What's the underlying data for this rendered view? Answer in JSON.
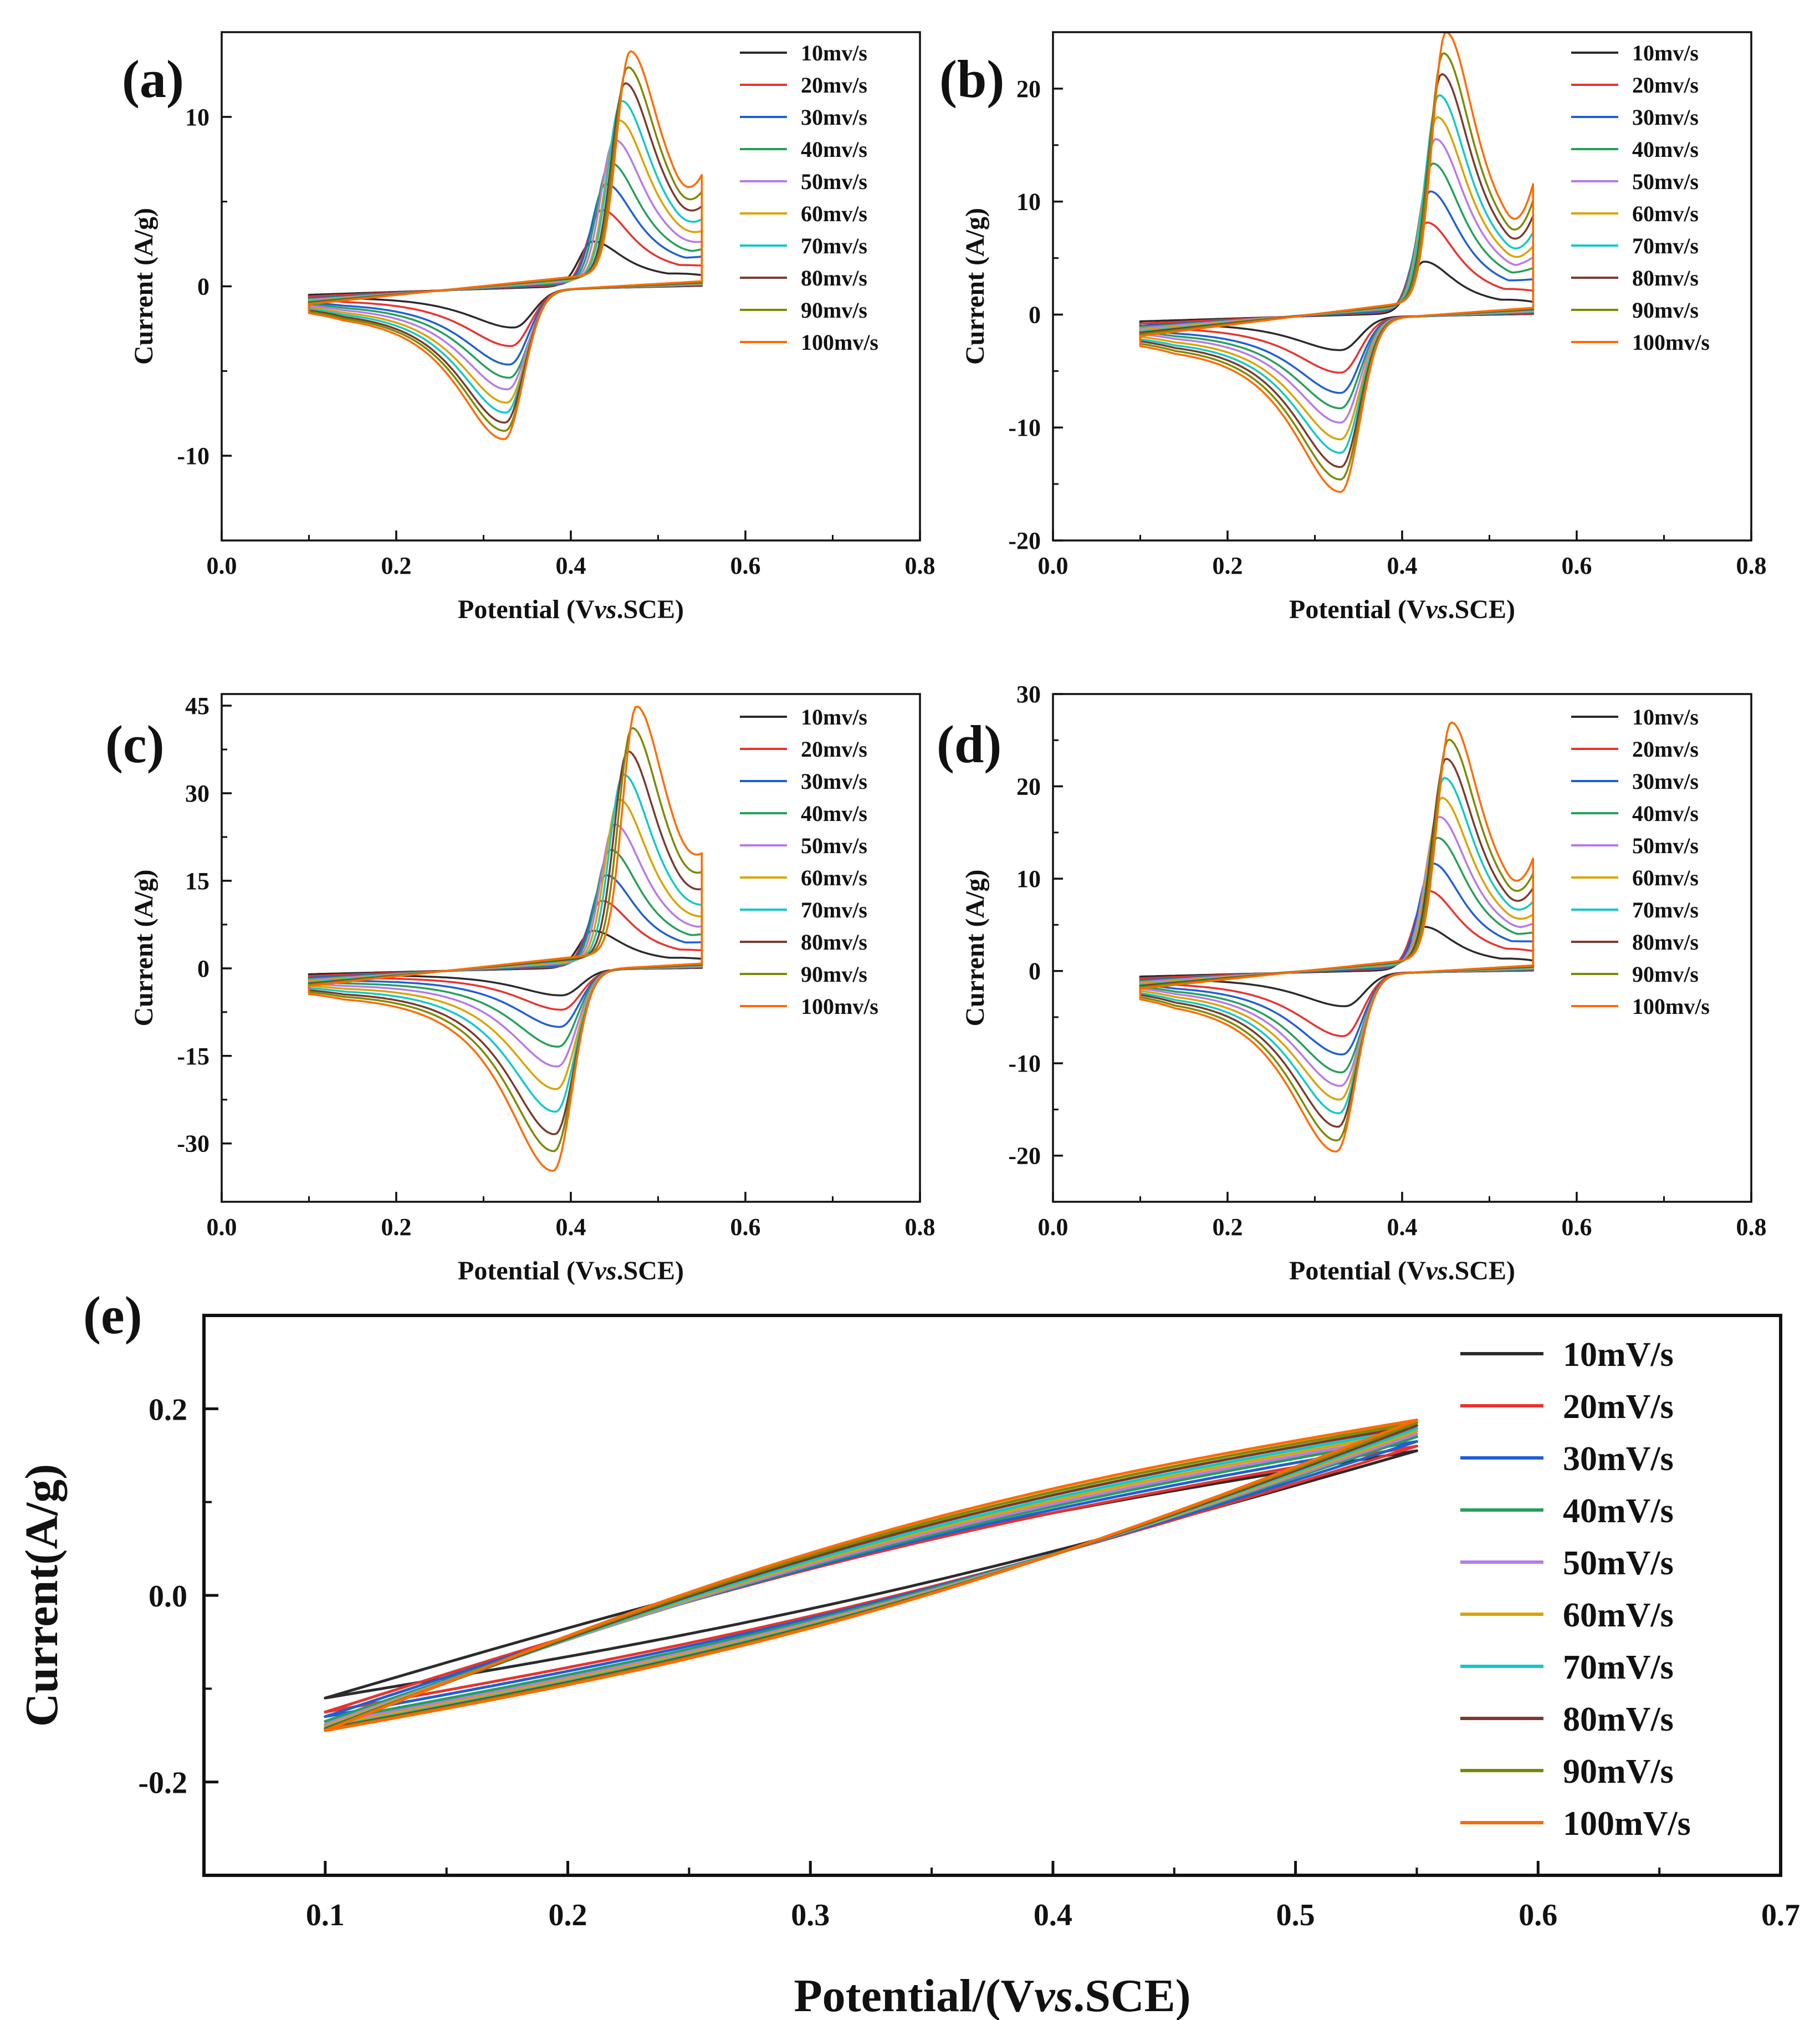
{
  "colors": [
    "#2b2b2b",
    "#e8332d",
    "#1f5fd6",
    "#24a05a",
    "#b77ae8",
    "#d9a300",
    "#11c8c8",
    "#7b3a2c",
    "#7a8a00",
    "#ff6a00"
  ],
  "chart_data": [
    {
      "id": "a",
      "type": "line",
      "panel_label": "(a)",
      "xlabel_pre": "Potential (V",
      "xlabel_italic": "vs",
      "xlabel_post": ".SCE)",
      "ylabel": "Current (A/g)",
      "xlim": [
        0.0,
        0.8
      ],
      "ylim": [
        -15,
        15
      ],
      "xticks": [
        0.0,
        0.2,
        0.4,
        0.6,
        0.8
      ],
      "xtick_labels": [
        "0.0",
        "0.2",
        "0.4",
        "0.6",
        "0.8"
      ],
      "yticks": [
        -10,
        0,
        10
      ],
      "ytick_labels": [
        "-10",
        "0",
        "10"
      ],
      "cv_range": [
        0.1,
        0.55
      ],
      "legend": [
        "10mv/s",
        "20mv/s",
        "30mv/s",
        "40mv/s",
        "50mv/s",
        "60mv/s",
        "70mv/s",
        "80mv/s",
        "90mv/s",
        "100mv/s"
      ],
      "anodic_peak_potential": [
        0.425,
        0.435,
        0.44,
        0.445,
        0.45,
        0.455,
        0.458,
        0.462,
        0.465,
        0.468
      ],
      "anodic_peak_current": [
        2.7,
        4.5,
        6.0,
        7.2,
        8.5,
        9.6,
        10.7,
        11.7,
        12.6,
        13.5
      ],
      "cathodic_peak_potential": [
        0.335,
        0.332,
        0.33,
        0.33,
        0.328,
        0.327,
        0.326,
        0.325,
        0.325,
        0.324
      ],
      "cathodic_peak_current": [
        -2.3,
        -3.4,
        -4.5,
        -5.3,
        -6.0,
        -6.8,
        -7.4,
        -8.0,
        -8.5,
        -9.0
      ],
      "end_current": [
        0.6,
        1.2,
        1.8,
        2.3,
        2.8,
        3.3,
        3.9,
        4.5,
        5.2,
        6.0
      ],
      "start_current": [
        -0.5,
        -0.6,
        -0.7,
        -0.75,
        -0.8,
        -0.85,
        -0.9,
        -0.95,
        -1.0,
        -1.05
      ]
    },
    {
      "id": "b",
      "type": "line",
      "panel_label": "(b)",
      "xlabel_pre": "Potential (V",
      "xlabel_italic": "vs",
      "xlabel_post": ".SCE)",
      "ylabel": "Current (A/g)",
      "xlim": [
        0.0,
        0.8
      ],
      "ylim": [
        -20,
        25
      ],
      "xticks": [
        0.0,
        0.2,
        0.4,
        0.6,
        0.8
      ],
      "xtick_labels": [
        "0.0",
        "0.2",
        "0.4",
        "0.6",
        "0.8"
      ],
      "yticks": [
        -20,
        -10,
        0,
        10,
        20
      ],
      "ytick_labels": [
        "-20",
        "-10",
        "0",
        "10",
        "20"
      ],
      "cv_range": [
        0.1,
        0.55
      ],
      "legend": [
        "10mv/s",
        "20mv/s",
        "30mv/s",
        "40mv/s",
        "50mv/s",
        "60mv/s",
        "70mv/s",
        "80mv/s",
        "90mv/s",
        "100mv/s"
      ],
      "anodic_peak_potential": [
        0.425,
        0.428,
        0.432,
        0.435,
        0.438,
        0.44,
        0.442,
        0.445,
        0.447,
        0.45
      ],
      "anodic_peak_current": [
        4.7,
        8.1,
        10.8,
        13.2,
        15.3,
        17.2,
        19.1,
        20.9,
        22.7,
        24.5
      ],
      "cathodic_peak_potential": [
        0.33,
        0.33,
        0.33,
        0.33,
        0.33,
        0.33,
        0.33,
        0.33,
        0.33,
        0.33
      ],
      "cathodic_peak_current": [
        -3.0,
        -5.0,
        -6.8,
        -8.2,
        -9.5,
        -11.0,
        -12.2,
        -13.5,
        -14.6,
        -15.7
      ],
      "end_current": [
        1.0,
        2.0,
        3.2,
        4.4,
        5.6,
        6.8,
        8.0,
        9.4,
        10.7,
        12.0
      ],
      "start_current": [
        -0.6,
        -0.8,
        -1.0,
        -1.1,
        -1.2,
        -1.35,
        -1.5,
        -1.6,
        -1.75,
        -1.9
      ]
    },
    {
      "id": "c",
      "type": "line",
      "panel_label": "(c)",
      "xlabel_pre": "Potential (V",
      "xlabel_italic": "vs",
      "xlabel_post": ".SCE)",
      "ylabel": "Current (A/g)",
      "xlim": [
        0.0,
        0.8
      ],
      "ylim": [
        -40,
        47
      ],
      "xticks": [
        0.0,
        0.2,
        0.4,
        0.6,
        0.8
      ],
      "xtick_labels": [
        "0.0",
        "0.2",
        "0.4",
        "0.6",
        "0.8"
      ],
      "yticks": [
        -30,
        -15,
        0,
        15,
        30,
        45
      ],
      "ytick_labels": [
        "-30",
        "-15",
        "0",
        "15",
        "30",
        "45"
      ],
      "cv_range": [
        0.1,
        0.55
      ],
      "legend": [
        "10mv/s",
        "20mv/s",
        "30mv/s",
        "40mv/s",
        "50mv/s",
        "60mv/s",
        "70mv/s",
        "80mv/s",
        "90mv/s",
        "100mv/s"
      ],
      "anodic_peak_potential": [
        0.425,
        0.435,
        0.44,
        0.445,
        0.45,
        0.455,
        0.46,
        0.465,
        0.47,
        0.475
      ],
      "anodic_peak_current": [
        6.5,
        11.5,
        15.8,
        20.0,
        24.2,
        28.3,
        32.4,
        36.2,
        40.0,
        43.5
      ],
      "cathodic_peak_potential": [
        0.39,
        0.39,
        0.388,
        0.386,
        0.385,
        0.384,
        0.383,
        0.382,
        0.381,
        0.38
      ],
      "cathodic_peak_current": [
        -4.5,
        -7.0,
        -10.0,
        -13.5,
        -17.0,
        -21.0,
        -25.0,
        -29.0,
        -32.0,
        -35.5
      ],
      "end_current": [
        1.5,
        3.0,
        4.5,
        6.0,
        7.5,
        9.0,
        10.5,
        12.5,
        14.5,
        16.5
      ],
      "start_current": [
        -1.0,
        -1.3,
        -1.6,
        -1.8,
        -2.0,
        -2.2,
        -2.4,
        -2.6,
        -2.8,
        -3.0
      ]
    },
    {
      "id": "d",
      "type": "line",
      "panel_label": "(d)",
      "xlabel_pre": "Potential (V",
      "xlabel_italic": "vs",
      "xlabel_post": ".SCE)",
      "ylabel": "Current (A/g)",
      "xlim": [
        0.0,
        0.8
      ],
      "ylim": [
        -25,
        30
      ],
      "xticks": [
        0.0,
        0.2,
        0.4,
        0.6,
        0.8
      ],
      "xtick_labels": [
        "0.0",
        "0.2",
        "0.4",
        "0.6",
        "0.8"
      ],
      "yticks": [
        -20,
        -10,
        0,
        10,
        20,
        30
      ],
      "ytick_labels": [
        "-20",
        "-10",
        "0",
        "10",
        "20",
        "30"
      ],
      "cv_range": [
        0.1,
        0.55
      ],
      "legend": [
        "10mv/s",
        "20mv/s",
        "30mv/s",
        "40mv/s",
        "50mv/s",
        "60mv/s",
        "70mv/s",
        "80mv/s",
        "90mv/s",
        "100mv/s"
      ],
      "anodic_peak_potential": [
        0.425,
        0.43,
        0.435,
        0.44,
        0.442,
        0.445,
        0.448,
        0.45,
        0.453,
        0.456
      ],
      "anodic_peak_current": [
        4.8,
        8.6,
        11.5,
        14.2,
        16.4,
        18.4,
        20.5,
        22.5,
        24.5,
        26.3
      ],
      "cathodic_peak_potential": [
        0.335,
        0.333,
        0.332,
        0.331,
        0.33,
        0.329,
        0.328,
        0.327,
        0.326,
        0.325
      ],
      "cathodic_peak_current": [
        -3.7,
        -7.0,
        -9.0,
        -11.0,
        -12.5,
        -14.0,
        -15.5,
        -17.0,
        -18.5,
        -19.7
      ],
      "end_current": [
        1.0,
        2.0,
        3.2,
        4.3,
        5.5,
        6.7,
        8.0,
        9.4,
        10.8,
        12.2
      ],
      "start_current": [
        -0.6,
        -0.8,
        -1.0,
        -1.1,
        -1.2,
        -1.35,
        -1.5,
        -1.6,
        -1.75,
        -1.9
      ]
    },
    {
      "id": "e",
      "type": "line",
      "panel_label": "(e)",
      "xlabel_pre": "Potential/(V",
      "xlabel_italic": "vs",
      "xlabel_post": ".SCE)",
      "ylabel": "Current(A/g)",
      "xlim": [
        0.05,
        0.7
      ],
      "ylim": [
        -0.3,
        0.3
      ],
      "xticks": [
        0.1,
        0.2,
        0.3,
        0.4,
        0.5,
        0.6,
        0.7
      ],
      "xtick_labels": [
        "0.1",
        "0.2",
        "0.3",
        "0.4",
        "0.5",
        "0.6",
        "0.7"
      ],
      "yticks": [
        -0.2,
        0.0,
        0.2
      ],
      "ytick_labels": [
        "-0.2",
        "0.0",
        "0.2"
      ],
      "cv_range": [
        0.1,
        0.55
      ],
      "legend": [
        "10mV/s",
        "20mV/s",
        "30mV/s",
        "40mV/s",
        "50mV/s",
        "60mV/s",
        "70mV/s",
        "80mV/s",
        "90mV/s",
        "100mV/s"
      ],
      "start_current": [
        -0.11,
        -0.125,
        -0.13,
        -0.135,
        -0.138,
        -0.14,
        -0.142,
        -0.143,
        -0.144,
        -0.145
      ],
      "end_current": [
        0.155,
        0.16,
        0.165,
        0.17,
        0.173,
        0.176,
        0.179,
        0.182,
        0.185,
        0.188
      ]
    }
  ]
}
